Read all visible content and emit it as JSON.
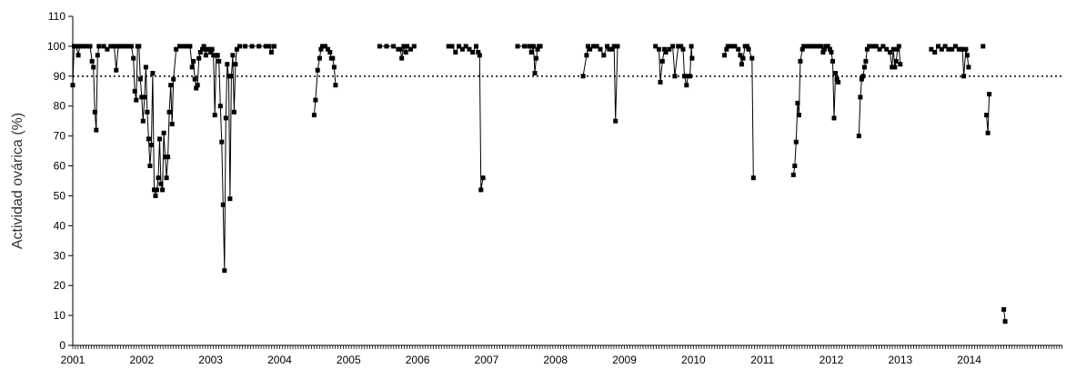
{
  "chart_data": {
    "type": "line",
    "title": "",
    "xlabel": "",
    "ylabel": "Actividad ovárica (%)",
    "xlim": [
      2001.0,
      2015.35
    ],
    "ylim": [
      0,
      110
    ],
    "y_ticks": [
      "0",
      "10",
      "20",
      "30",
      "40",
      "50",
      "60",
      "70",
      "80",
      "90",
      "100",
      "110"
    ],
    "x_tick_labels": [
      "2001",
      "2002",
      "2003",
      "2004",
      "2005",
      "2006",
      "2007",
      "2008",
      "2009",
      "2010",
      "2011",
      "2012",
      "2013",
      "2014"
    ],
    "reference_line": {
      "y": 90,
      "style": "dotted"
    },
    "grid": false,
    "legend": "none",
    "colors": {
      "series": "#000000",
      "axis": "#000000"
    },
    "series": [
      {
        "segments": [
          [
            [
              2001.0,
              87
            ],
            [
              2001.02,
              100
            ],
            [
              2001.05,
              100
            ],
            [
              2001.08,
              97
            ],
            [
              2001.1,
              100
            ],
            [
              2001.15,
              100
            ],
            [
              2001.2,
              100
            ],
            [
              2001.25,
              100
            ],
            [
              2001.28,
              95
            ],
            [
              2001.3,
              93
            ],
            [
              2001.32,
              78
            ],
            [
              2001.34,
              72
            ],
            [
              2001.36,
              97
            ],
            [
              2001.38,
              100
            ],
            [
              2001.45,
              100
            ],
            [
              2001.5,
              99
            ],
            [
              2001.55,
              100
            ],
            [
              2001.6,
              100
            ],
            [
              2001.63,
              92
            ],
            [
              2001.66,
              100
            ],
            [
              2001.7,
              100
            ],
            [
              2001.75,
              100
            ],
            [
              2001.8,
              100
            ],
            [
              2001.85,
              100
            ],
            [
              2001.88,
              96
            ],
            [
              2001.9,
              85
            ],
            [
              2001.92,
              82
            ],
            [
              2001.94,
              100
            ],
            [
              2001.96,
              100
            ],
            [
              2001.98,
              89
            ],
            [
              2002.0,
              83
            ],
            [
              2002.02,
              75
            ],
            [
              2002.04,
              83
            ],
            [
              2002.06,
              93
            ],
            [
              2002.08,
              78
            ],
            [
              2002.1,
              69
            ],
            [
              2002.12,
              60
            ],
            [
              2002.14,
              67
            ],
            [
              2002.16,
              91
            ],
            [
              2002.18,
              52
            ],
            [
              2002.2,
              50
            ],
            [
              2002.22,
              52
            ],
            [
              2002.24,
              56
            ],
            [
              2002.26,
              69
            ],
            [
              2002.28,
              54
            ],
            [
              2002.3,
              52
            ],
            [
              2002.32,
              71
            ],
            [
              2002.34,
              63
            ],
            [
              2002.36,
              56
            ],
            [
              2002.38,
              63
            ],
            [
              2002.4,
              78
            ],
            [
              2002.42,
              87
            ],
            [
              2002.44,
              74
            ],
            [
              2002.46,
              89
            ],
            [
              2002.5,
              99
            ],
            [
              2002.55,
              100
            ],
            [
              2002.6,
              100
            ],
            [
              2002.65,
              100
            ],
            [
              2002.7,
              100
            ],
            [
              2002.73,
              93
            ],
            [
              2002.75,
              95
            ],
            [
              2002.77,
              89
            ],
            [
              2002.79,
              86
            ],
            [
              2002.81,
              87
            ],
            [
              2002.83,
              96
            ],
            [
              2002.85,
              98
            ],
            [
              2002.88,
              99
            ],
            [
              2002.9,
              100
            ],
            [
              2002.93,
              97
            ],
            [
              2002.95,
              99
            ],
            [
              2002.98,
              99
            ],
            [
              2003.0,
              98
            ],
            [
              2003.02,
              99
            ],
            [
              2003.04,
              97
            ],
            [
              2003.06,
              77
            ],
            [
              2003.08,
              97
            ],
            [
              2003.1,
              97
            ],
            [
              2003.12,
              95
            ],
            [
              2003.14,
              80
            ],
            [
              2003.16,
              68
            ],
            [
              2003.18,
              47
            ],
            [
              2003.2,
              25
            ],
            [
              2003.22,
              76
            ],
            [
              2003.24,
              94
            ],
            [
              2003.26,
              90
            ],
            [
              2003.28,
              49
            ],
            [
              2003.3,
              90
            ],
            [
              2003.32,
              97
            ],
            [
              2003.34,
              78
            ],
            [
              2003.36,
              94
            ],
            [
              2003.38,
              99
            ],
            [
              2003.42,
              100
            ],
            [
              2003.5,
              100
            ],
            [
              2003.6,
              100
            ],
            [
              2003.7,
              100
            ],
            [
              2003.8,
              100
            ],
            [
              2003.85,
              100
            ],
            [
              2003.88,
              98
            ],
            [
              2003.92,
              100
            ]
          ],
          [
            [
              2004.5,
              77
            ],
            [
              2004.52,
              82
            ],
            [
              2004.55,
              92
            ],
            [
              2004.58,
              96
            ],
            [
              2004.6,
              99
            ],
            [
              2004.62,
              100
            ],
            [
              2004.66,
              100
            ],
            [
              2004.7,
              99
            ],
            [
              2004.73,
              98
            ],
            [
              2004.75,
              96
            ],
            [
              2004.77,
              96
            ],
            [
              2004.79,
              93
            ],
            [
              2004.81,
              87
            ]
          ],
          [
            [
              2005.45,
              100
            ],
            [
              2005.55,
              100
            ],
            [
              2005.65,
              100
            ],
            [
              2005.72,
              99
            ],
            [
              2005.75,
              99
            ],
            [
              2005.77,
              96
            ],
            [
              2005.8,
              100
            ],
            [
              2005.83,
              98
            ],
            [
              2005.85,
              100
            ],
            [
              2005.9,
              99
            ],
            [
              2005.95,
              100
            ]
          ],
          [
            [
              2006.45,
              100
            ],
            [
              2006.5,
              100
            ],
            [
              2006.55,
              98
            ],
            [
              2006.6,
              100
            ],
            [
              2006.65,
              99
            ],
            [
              2006.7,
              100
            ],
            [
              2006.75,
              99
            ],
            [
              2006.8,
              98
            ],
            [
              2006.85,
              100
            ],
            [
              2006.88,
              98
            ],
            [
              2006.9,
              97
            ],
            [
              2006.92,
              52
            ],
            [
              2006.95,
              56
            ]
          ],
          [
            [
              2007.45,
              100
            ],
            [
              2007.55,
              100
            ],
            [
              2007.62,
              100
            ],
            [
              2007.65,
              98
            ],
            [
              2007.68,
              100
            ],
            [
              2007.7,
              91
            ],
            [
              2007.72,
              96
            ],
            [
              2007.74,
              99
            ],
            [
              2007.76,
              100
            ],
            [
              2007.78,
              100
            ]
          ],
          [
            [
              2008.4,
              90
            ],
            [
              2008.45,
              97
            ],
            [
              2008.47,
              100
            ],
            [
              2008.5,
              99
            ],
            [
              2008.55,
              100
            ],
            [
              2008.6,
              100
            ],
            [
              2008.65,
              99
            ],
            [
              2008.7,
              97
            ],
            [
              2008.75,
              100
            ],
            [
              2008.78,
              99
            ],
            [
              2008.82,
              99
            ],
            [
              2008.85,
              100
            ],
            [
              2008.87,
              75
            ],
            [
              2008.9,
              100
            ]
          ],
          [
            [
              2009.45,
              100
            ],
            [
              2009.5,
              99
            ],
            [
              2009.52,
              88
            ],
            [
              2009.55,
              95
            ],
            [
              2009.58,
              99
            ],
            [
              2009.6,
              98
            ],
            [
              2009.65,
              99
            ],
            [
              2009.7,
              100
            ],
            [
              2009.73,
              90
            ],
            [
              2009.78,
              100
            ],
            [
              2009.82,
              100
            ],
            [
              2009.85,
              99
            ],
            [
              2009.87,
              90
            ],
            [
              2009.9,
              87
            ],
            [
              2009.92,
              90
            ],
            [
              2009.95,
              90
            ],
            [
              2009.97,
              100
            ],
            [
              2009.98,
              96
            ]
          ],
          [
            [
              2010.45,
              97
            ],
            [
              2010.48,
              99
            ],
            [
              2010.5,
              100
            ],
            [
              2010.55,
              100
            ],
            [
              2010.6,
              100
            ],
            [
              2010.65,
              99
            ],
            [
              2010.68,
              97
            ],
            [
              2010.7,
              94
            ],
            [
              2010.72,
              96
            ],
            [
              2010.75,
              100
            ],
            [
              2010.78,
              100
            ],
            [
              2010.8,
              99
            ],
            [
              2010.85,
              96
            ],
            [
              2010.87,
              56
            ]
          ],
          [
            [
              2011.45,
              57
            ],
            [
              2011.47,
              60
            ],
            [
              2011.49,
              68
            ],
            [
              2011.51,
              81
            ],
            [
              2011.53,
              77
            ],
            [
              2011.55,
              95
            ],
            [
              2011.58,
              99
            ],
            [
              2011.6,
              100
            ],
            [
              2011.65,
              100
            ],
            [
              2011.7,
              100
            ],
            [
              2011.75,
              100
            ],
            [
              2011.8,
              100
            ],
            [
              2011.85,
              100
            ],
            [
              2011.88,
              98
            ],
            [
              2011.9,
              99
            ],
            [
              2011.92,
              100
            ],
            [
              2011.95,
              100
            ],
            [
              2011.98,
              99
            ],
            [
              2012.0,
              98
            ],
            [
              2012.02,
              95
            ],
            [
              2012.04,
              76
            ],
            [
              2012.06,
              91
            ],
            [
              2012.08,
              89
            ],
            [
              2012.1,
              88
            ]
          ],
          [
            [
              2012.4,
              70
            ],
            [
              2012.42,
              83
            ],
            [
              2012.44,
              89
            ],
            [
              2012.46,
              90
            ],
            [
              2012.48,
              93
            ],
            [
              2012.5,
              95
            ],
            [
              2012.52,
              99
            ],
            [
              2012.55,
              100
            ],
            [
              2012.6,
              100
            ],
            [
              2012.65,
              100
            ],
            [
              2012.7,
              99
            ],
            [
              2012.75,
              100
            ],
            [
              2012.8,
              99
            ],
            [
              2012.85,
              98
            ],
            [
              2012.88,
              93
            ],
            [
              2012.9,
              99
            ],
            [
              2012.92,
              93
            ],
            [
              2012.94,
              95
            ],
            [
              2012.96,
              99
            ],
            [
              2012.98,
              100
            ],
            [
              2013.0,
              94
            ]
          ],
          [
            [
              2013.45,
              99
            ],
            [
              2013.5,
              98
            ],
            [
              2013.55,
              100
            ],
            [
              2013.6,
              99
            ],
            [
              2013.65,
              100
            ],
            [
              2013.7,
              99
            ],
            [
              2013.75,
              99
            ],
            [
              2013.8,
              100
            ],
            [
              2013.85,
              99
            ],
            [
              2013.88,
              99
            ],
            [
              2013.9,
              99
            ],
            [
              2013.92,
              90
            ],
            [
              2013.95,
              99
            ],
            [
              2013.97,
              97
            ],
            [
              2013.99,
              93
            ]
          ],
          [
            [
              2014.2,
              100
            ]
          ],
          [
            [
              2014.25,
              77
            ],
            [
              2014.27,
              71
            ],
            [
              2014.29,
              84
            ]
          ],
          [
            [
              2014.5,
              12
            ],
            [
              2014.52,
              8
            ]
          ]
        ]
      }
    ]
  }
}
